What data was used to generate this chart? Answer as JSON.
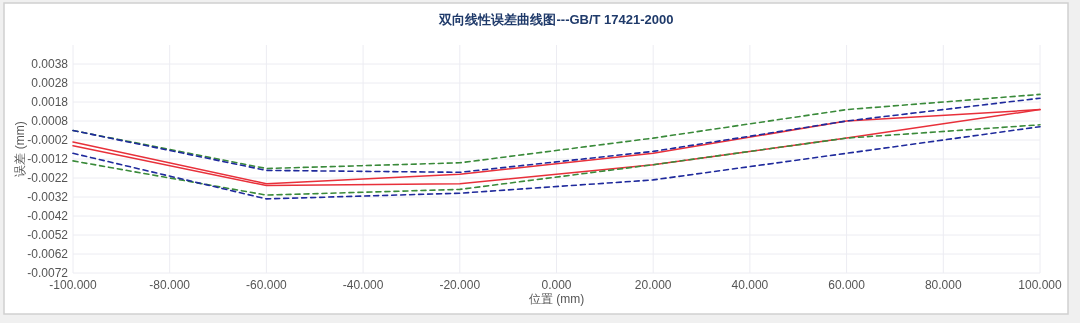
{
  "chart_data": {
    "type": "line",
    "title": "双向线性误差曲线图---GB/T  17421-2000",
    "xlabel": "位置 (mm)",
    "ylabel": "误差 (mm)",
    "x": [
      -100,
      -60,
      -20,
      20,
      60,
      100
    ],
    "xlim": [
      -100,
      100
    ],
    "xticks": [
      {
        "value": -100,
        "label": "-100.000"
      },
      {
        "value": -80,
        "label": "-80.000"
      },
      {
        "value": -60,
        "label": "-60.000"
      },
      {
        "value": -40,
        "label": "-40.000"
      },
      {
        "value": -20,
        "label": "-20.000"
      },
      {
        "value": 0,
        "label": "0.000"
      },
      {
        "value": 20,
        "label": "20.000"
      },
      {
        "value": 40,
        "label": "40.000"
      },
      {
        "value": 60,
        "label": "60.000"
      },
      {
        "value": 80,
        "label": "80.000"
      },
      {
        "value": 100,
        "label": "100.000"
      }
    ],
    "ylim": [
      -0.0072,
      0.0048
    ],
    "yticks": [
      {
        "value": 0.0038,
        "label": "0.0038"
      },
      {
        "value": 0.0028,
        "label": "0.0028"
      },
      {
        "value": 0.0018,
        "label": "0.0018"
      },
      {
        "value": 0.0008,
        "label": "0.0008"
      },
      {
        "value": -0.0002,
        "label": "-0.0002"
      },
      {
        "value": -0.0012,
        "label": "-0.0012"
      },
      {
        "value": -0.0022,
        "label": "-0.0022"
      },
      {
        "value": -0.0032,
        "label": "-0.0032"
      },
      {
        "value": -0.0042,
        "label": "-0.0042"
      },
      {
        "value": -0.0052,
        "label": "-0.0052"
      },
      {
        "value": -0.0062,
        "label": "-0.0062"
      },
      {
        "value": -0.0072,
        "label": "-0.0072"
      }
    ],
    "grid": true,
    "series": [
      {
        "color": "#e8303a",
        "line_style": "solid",
        "values": [
          -0.0003,
          -0.0025,
          -0.002,
          -0.0009,
          0.0008,
          0.0014
        ]
      },
      {
        "color": "#e8303a",
        "line_style": "solid",
        "values": [
          -0.0005,
          -0.0026,
          -0.0025,
          -0.0015,
          -0.0001,
          0.0014
        ]
      },
      {
        "color": "#3a8a3a",
        "line_style": "dashed",
        "values": [
          0.0003,
          -0.0017,
          -0.0014,
          -0.0001,
          0.0014,
          0.0022
        ]
      },
      {
        "color": "#1f2a9c",
        "line_style": "dashed",
        "values": [
          0.0003,
          -0.0018,
          -0.0019,
          -0.0008,
          0.0008,
          0.002
        ]
      },
      {
        "color": "#3a8a3a",
        "line_style": "dashed",
        "values": [
          -0.0013,
          -0.0031,
          -0.0028,
          -0.0015,
          -0.0001,
          0.0006
        ]
      },
      {
        "color": "#1f2a9c",
        "line_style": "dashed",
        "values": [
          -0.0009,
          -0.0033,
          -0.003,
          -0.0023,
          -0.0009,
          0.0005
        ]
      }
    ]
  }
}
